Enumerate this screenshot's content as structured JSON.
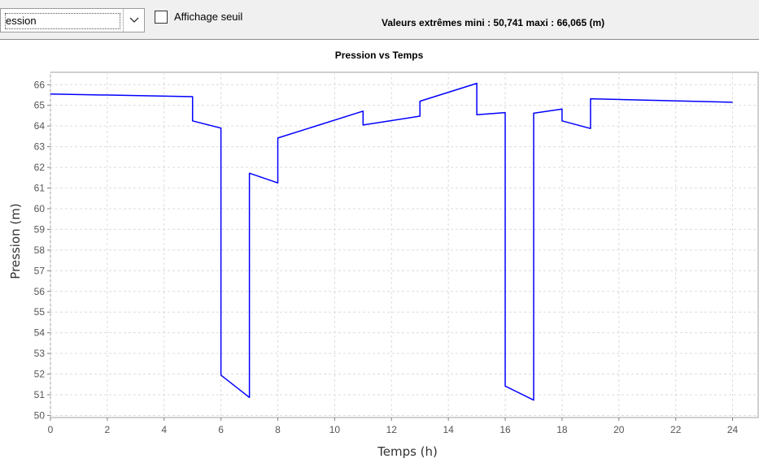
{
  "toolbar": {
    "variable_select_value": "ession",
    "threshold_label": "Affichage seuil",
    "threshold_checked": false,
    "extremes_text": "Valeurs extrêmes mini : 50,741 maxi : 66,065 (m)"
  },
  "chart_data": {
    "type": "line",
    "title": "Pression vs Temps",
    "xlabel": "Temps (h)",
    "ylabel": "Pression (m)",
    "xlim": [
      0,
      24.9
    ],
    "ylim": [
      49.9,
      66.6
    ],
    "x_ticks": [
      0,
      2,
      4,
      6,
      8,
      10,
      12,
      14,
      16,
      18,
      20,
      22,
      24
    ],
    "y_ticks": [
      50,
      51,
      52,
      53,
      54,
      55,
      56,
      57,
      58,
      59,
      60,
      61,
      62,
      63,
      64,
      65,
      66
    ],
    "grid": true,
    "series": [
      {
        "color": "#0000ff",
        "x": [
          0,
          5,
          5,
          6,
          6,
          7,
          7,
          8,
          8,
          11,
          11,
          13,
          13,
          15,
          15,
          16,
          16,
          17,
          17,
          18,
          18,
          19,
          19,
          24
        ],
        "y": [
          65.55,
          65.42,
          64.25,
          63.9,
          51.95,
          50.87,
          61.72,
          61.25,
          63.42,
          64.72,
          64.05,
          64.48,
          65.2,
          66.065,
          64.55,
          64.65,
          51.42,
          50.741,
          64.62,
          64.82,
          64.25,
          63.88,
          65.32,
          65.15
        ]
      }
    ]
  }
}
